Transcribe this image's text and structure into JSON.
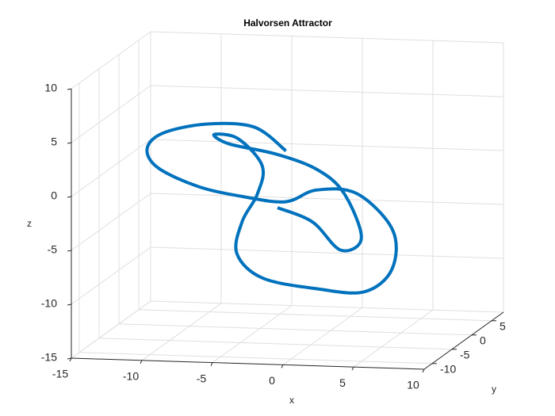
{
  "chart_data": {
    "type": "line3d",
    "title": "Halvorsen Attractor",
    "x_label": "x",
    "y_label": "y",
    "z_label": "z",
    "color": "#0072bd",
    "grid": true,
    "xlim": [
      -15,
      10
    ],
    "xticks": [
      -15,
      -10,
      -5,
      0,
      5,
      10
    ],
    "ylim": [
      -12,
      8
    ],
    "yticks": [
      -10,
      -5,
      0,
      5
    ],
    "zlim": [
      -15,
      10
    ],
    "zticks": [
      -15,
      -10,
      -5,
      0,
      5,
      10
    ],
    "x": [
      -2.6,
      -4.6,
      -7.7,
      -10.5,
      -11.6,
      -11.1,
      -8.5,
      -5.5,
      -2.9,
      -1.0,
      1.6,
      4.4,
      4.9,
      3.5,
      0.7,
      -2.6,
      -4.4,
      -4.3,
      -3.8,
      -4.0,
      -6.0,
      -7.7,
      -6.9,
      -3.8,
      -1.2,
      0.4,
      1.9,
      0.7,
      -1.0,
      -3.2
    ],
    "y": [
      -2,
      -3,
      -4,
      -5,
      -5,
      -4,
      -3,
      -2,
      -1,
      0,
      1,
      0,
      -2,
      -4,
      -6,
      -8,
      -8,
      -7,
      -5,
      -3,
      -2,
      -2,
      -1,
      0,
      1,
      2,
      1,
      0,
      -1,
      -2
    ],
    "z": [
      2.1,
      4.5,
      4.9,
      4.2,
      2.7,
      0.7,
      -1.2,
      -2.3,
      -2.9,
      -2.0,
      -2.5,
      -5.5,
      -8.6,
      -10.2,
      -9.5,
      -8.1,
      -5.9,
      -3.2,
      -1.2,
      0.9,
      3.1,
      3.4,
      2.3,
      1.2,
      -0.4,
      -2.8,
      -6.6,
      -7.5,
      -4.7,
      -3.2
    ]
  }
}
